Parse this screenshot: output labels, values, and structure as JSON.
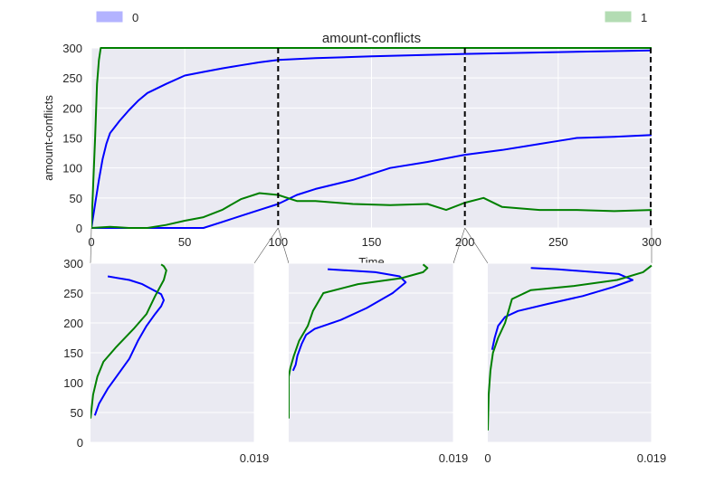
{
  "legend": {
    "entries": [
      {
        "label": "0",
        "color": "#b3b3ff"
      },
      {
        "label": "1",
        "color": "#b3dcb3"
      }
    ],
    "placement": "top, spanning (0 at left, 1 at right)"
  },
  "chart_data": [
    {
      "type": "line",
      "title": "amount-conflicts",
      "xlabel": "Time",
      "ylabel": "amount-conflicts",
      "xlim": [
        0,
        300
      ],
      "ylim": [
        0,
        300
      ],
      "xticks": [
        "0",
        "50",
        "100",
        "150",
        "200",
        "250",
        "300"
      ],
      "yticks": [
        "0",
        "50",
        "100",
        "150",
        "200",
        "250",
        "300"
      ],
      "grid": true,
      "background": "#eaeaf2",
      "vlines": [
        100,
        200,
        300
      ],
      "series": [
        {
          "color": "#0000ff",
          "x": [
            0,
            2,
            4,
            6,
            8,
            10,
            15,
            20,
            25,
            30,
            40,
            50,
            60,
            70,
            80,
            90,
            100,
            120,
            150,
            200,
            250,
            300
          ],
          "y": [
            0,
            40,
            80,
            115,
            140,
            158,
            178,
            196,
            212,
            225,
            240,
            254,
            260,
            266,
            271,
            276,
            280,
            283,
            286,
            290,
            293,
            296
          ]
        },
        {
          "color": "#0000ff",
          "x": [
            0,
            20,
            40,
            60,
            70,
            80,
            90,
            100,
            110,
            120,
            140,
            150,
            160,
            180,
            200,
            220,
            240,
            250,
            260,
            280,
            300
          ],
          "y": [
            0,
            0,
            0,
            0,
            10,
            20,
            30,
            40,
            55,
            65,
            80,
            90,
            100,
            110,
            122,
            130,
            140,
            145,
            150,
            152,
            155
          ]
        },
        {
          "color": "#008000",
          "x": [
            0,
            2,
            3,
            4,
            5,
            6,
            8,
            300
          ],
          "y": [
            0,
            150,
            240,
            280,
            300,
            300,
            300,
            300
          ]
        },
        {
          "color": "#008000",
          "x": [
            0,
            10,
            20,
            30,
            40,
            50,
            60,
            70,
            80,
            90,
            100,
            110,
            120,
            140,
            160,
            180,
            190,
            200,
            210,
            220,
            240,
            260,
            280,
            300
          ],
          "y": [
            0,
            2,
            0,
            0,
            5,
            12,
            18,
            30,
            48,
            58,
            55,
            45,
            45,
            40,
            38,
            40,
            30,
            42,
            50,
            35,
            30,
            30,
            28,
            30
          ]
        }
      ]
    },
    {
      "type": "line",
      "subtype": "distribution",
      "xticks": [
        "",
        "0.019"
      ],
      "yticks": [
        "0",
        "50",
        "100",
        "150",
        "200",
        "250",
        "300"
      ],
      "ylim": [
        0,
        300
      ],
      "xlim": [
        0,
        0.019
      ],
      "series": [
        {
          "color": "#0000ff",
          "x": [
            0.0005,
            0.001,
            0.002,
            0.003,
            0.0045,
            0.0055,
            0.0065,
            0.0075,
            0.0082,
            0.0085,
            0.0082,
            0.006,
            0.0045,
            0.002
          ],
          "y": [
            45,
            65,
            90,
            110,
            140,
            170,
            195,
            215,
            228,
            238,
            248,
            265,
            272,
            278
          ]
        },
        {
          "color": "#008000",
          "x": [
            0,
            0.0003,
            0.0008,
            0.0015,
            0.003,
            0.005,
            0.0065,
            0.0075,
            0.0085,
            0.0088,
            0.0085,
            0.0082
          ],
          "y": [
            40,
            80,
            110,
            135,
            160,
            190,
            215,
            245,
            272,
            288,
            295,
            298
          ]
        }
      ]
    },
    {
      "type": "line",
      "subtype": "distribution",
      "xticks": [
        "",
        "0.019"
      ],
      "yticks": [
        "",
        "",
        "",
        "",
        "",
        "",
        ""
      ],
      "ylim": [
        0,
        300
      ],
      "xlim": [
        0,
        0.019
      ],
      "series": [
        {
          "color": "#0000ff",
          "x": [
            0.0005,
            0.0008,
            0.001,
            0.0015,
            0.002,
            0.003,
            0.006,
            0.009,
            0.012,
            0.0135,
            0.0128,
            0.01,
            0.0045
          ],
          "y": [
            120,
            130,
            145,
            165,
            180,
            190,
            205,
            225,
            250,
            268,
            278,
            285,
            290
          ]
        },
        {
          "color": "#008000",
          "x": [
            0,
            0,
            0,
            0.0002,
            0.0006,
            0.0012,
            0.0022,
            0.0028,
            0.004,
            0.008,
            0.013,
            0.0155,
            0.016,
            0.0155
          ],
          "y": [
            40,
            80,
            110,
            125,
            145,
            170,
            195,
            220,
            250,
            265,
            275,
            285,
            292,
            298
          ]
        }
      ]
    },
    {
      "type": "line",
      "subtype": "distribution",
      "xticks": [
        "0",
        "0.019"
      ],
      "yticks": [
        "",
        "",
        "",
        "",
        "",
        "",
        ""
      ],
      "ylim": [
        0,
        300
      ],
      "xlim": [
        0,
        0.019
      ],
      "series": [
        {
          "color": "#0000ff",
          "x": [
            0.0005,
            0.0008,
            0.0012,
            0.002,
            0.0035,
            0.007,
            0.011,
            0.0145,
            0.0168,
            0.0152,
            0.008,
            0.005
          ],
          "y": [
            155,
            175,
            195,
            210,
            220,
            232,
            245,
            260,
            272,
            282,
            290,
            292
          ]
        },
        {
          "color": "#008000",
          "x": [
            0,
            0.0001,
            0.0003,
            0.0006,
            0.0012,
            0.002,
            0.0028,
            0.005,
            0.01,
            0.015,
            0.018,
            0.019
          ],
          "y": [
            20,
            80,
            120,
            150,
            175,
            200,
            240,
            255,
            262,
            272,
            285,
            296
          ]
        }
      ]
    }
  ]
}
